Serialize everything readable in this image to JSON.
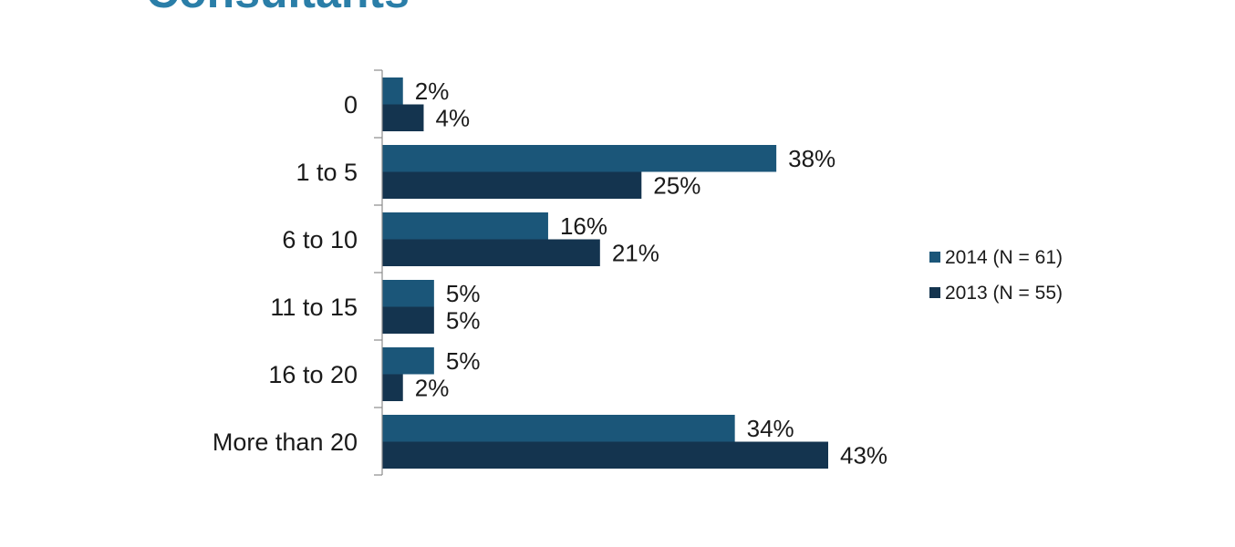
{
  "title": "Consultants",
  "chart_data": {
    "type": "bar",
    "orientation": "horizontal",
    "categories": [
      "0",
      "1 to 5",
      "6 to 10",
      "11 to 15",
      "16 to 20",
      "More than 20"
    ],
    "series": [
      {
        "name": "2014 (N = 61)",
        "color": "#1b5679",
        "values": [
          2,
          38,
          16,
          5,
          5,
          34
        ],
        "labels": [
          "2%",
          "38%",
          "16%",
          "5%",
          "5%",
          "34%"
        ]
      },
      {
        "name": "2013 (N = 55)",
        "color": "#14344f",
        "values": [
          4,
          25,
          21,
          5,
          2,
          43
        ],
        "labels": [
          "4%",
          "25%",
          "21%",
          "5%",
          "2%",
          "43%"
        ]
      }
    ],
    "xlim": [
      0,
      43
    ],
    "value_unit": "%",
    "grid": false,
    "legend_position": "right",
    "data_labels": true
  }
}
